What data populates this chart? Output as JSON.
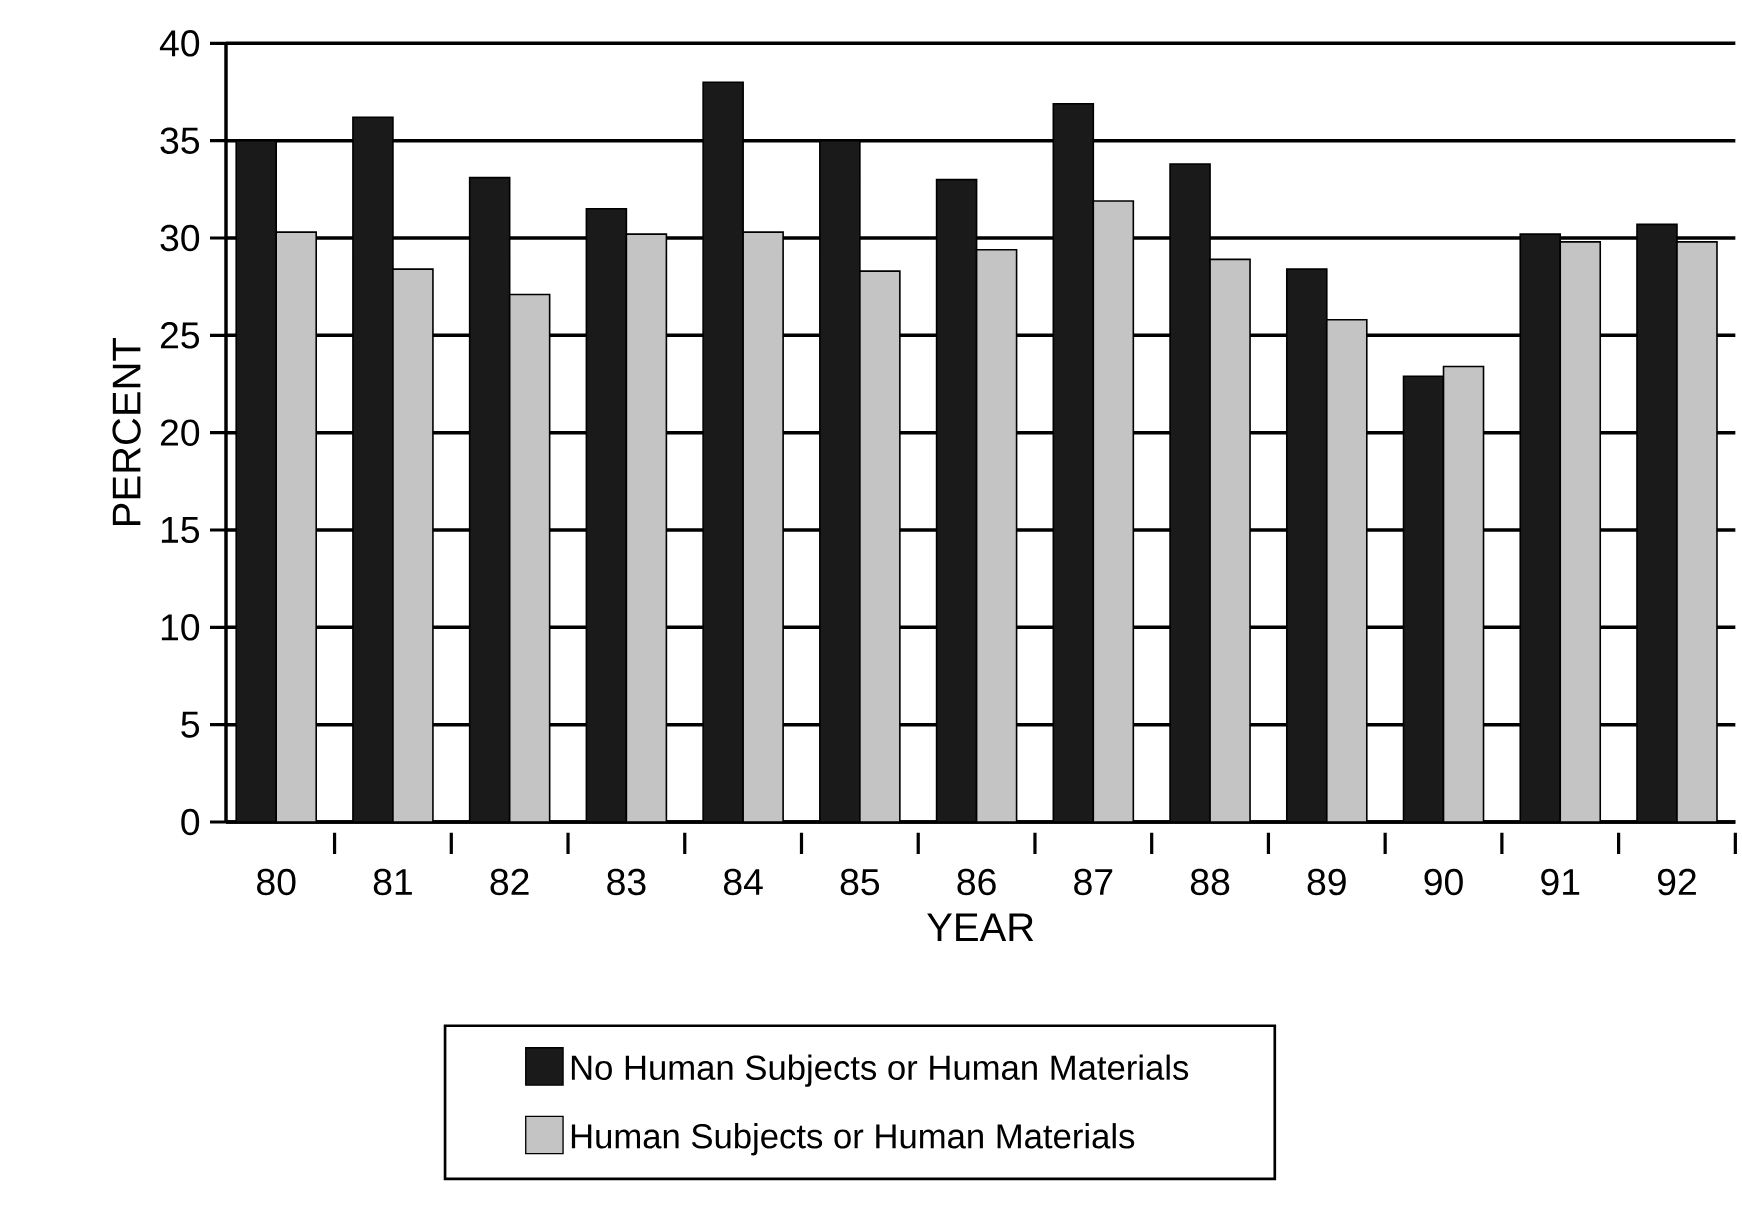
{
  "chart_data": {
    "type": "bar",
    "xlabel": "YEAR",
    "ylabel": "PERCENT",
    "categories": [
      "80",
      "81",
      "82",
      "83",
      "84",
      "85",
      "86",
      "87",
      "88",
      "89",
      "90",
      "91",
      "92"
    ],
    "series": [
      {
        "name": "No Human Subjects or Human Materials",
        "color": "#1a1a1a",
        "values": [
          35,
          36.2,
          33.1,
          31.5,
          38,
          35,
          33,
          36.9,
          33.8,
          28.4,
          22.9,
          30.2,
          30.7
        ]
      },
      {
        "name": "Human Subjects or Human Materials",
        "color": "#c4c4c4",
        "values": [
          30.3,
          28.4,
          27.1,
          30.2,
          30.3,
          28.3,
          29.4,
          31.9,
          28.9,
          25.8,
          23.4,
          29.8,
          29.8
        ]
      }
    ],
    "ylim": [
      0,
      40
    ],
    "yticks": [
      0,
      5,
      10,
      15,
      20,
      25,
      30,
      35,
      40
    ],
    "grid": "y",
    "legend": "bottom"
  }
}
